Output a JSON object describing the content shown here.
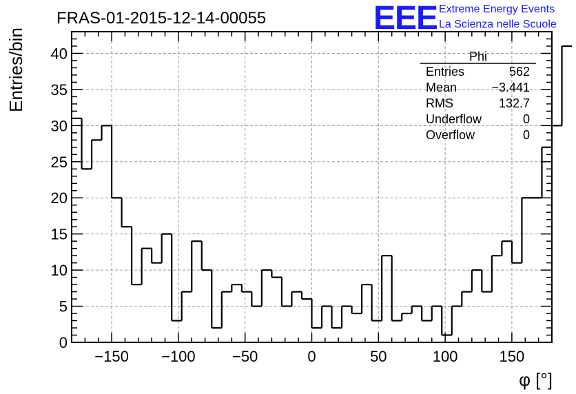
{
  "title": "FRAS-01-2015-12-14-00055",
  "logo": {
    "mark": "EEE",
    "line1": "Extreme Energy Events",
    "line2": "La Scienza nelle Scuole",
    "color": "#1a1aff"
  },
  "stats": {
    "title": "Phi",
    "rows": [
      {
        "key": "Entries",
        "value": "562"
      },
      {
        "key": "Mean",
        "value": "−3.441"
      },
      {
        "key": "RMS",
        "value": "132.7"
      },
      {
        "key": "Underflow",
        "value": "0"
      },
      {
        "key": "Overflow",
        "value": "0"
      }
    ]
  },
  "chart_data": {
    "type": "histogram-step",
    "title": "FRAS-01-2015-12-14-00055",
    "xlabel": "φ [°]",
    "ylabel": "Entries/bin",
    "xlim": [
      -180,
      180
    ],
    "ylim": [
      0,
      43
    ],
    "bin_edges_start": -180,
    "bin_width": 7.5,
    "values": [
      31,
      24,
      28,
      30,
      20,
      16,
      8,
      13,
      11,
      15,
      3,
      7,
      14,
      10,
      2,
      7,
      8,
      7,
      5,
      10,
      9,
      5,
      7,
      6,
      2,
      5,
      2,
      5,
      4,
      8,
      3,
      12,
      3,
      4,
      5,
      3,
      5,
      1,
      5,
      7,
      10,
      7,
      12,
      14,
      11,
      20,
      20,
      27,
      30,
      41
    ],
    "x_ticks": [
      -150,
      -100,
      -50,
      0,
      50,
      100,
      150
    ],
    "x_tick_labels": [
      "−150",
      "−100",
      "−50",
      "0",
      "50",
      "100",
      "150"
    ],
    "y_ticks": [
      0,
      5,
      10,
      15,
      20,
      25,
      30,
      35,
      40
    ],
    "y_tick_labels": [
      "0",
      "5",
      "10",
      "15",
      "20",
      "25",
      "30",
      "35",
      "40"
    ],
    "grid": true,
    "line_color": "#000000"
  }
}
